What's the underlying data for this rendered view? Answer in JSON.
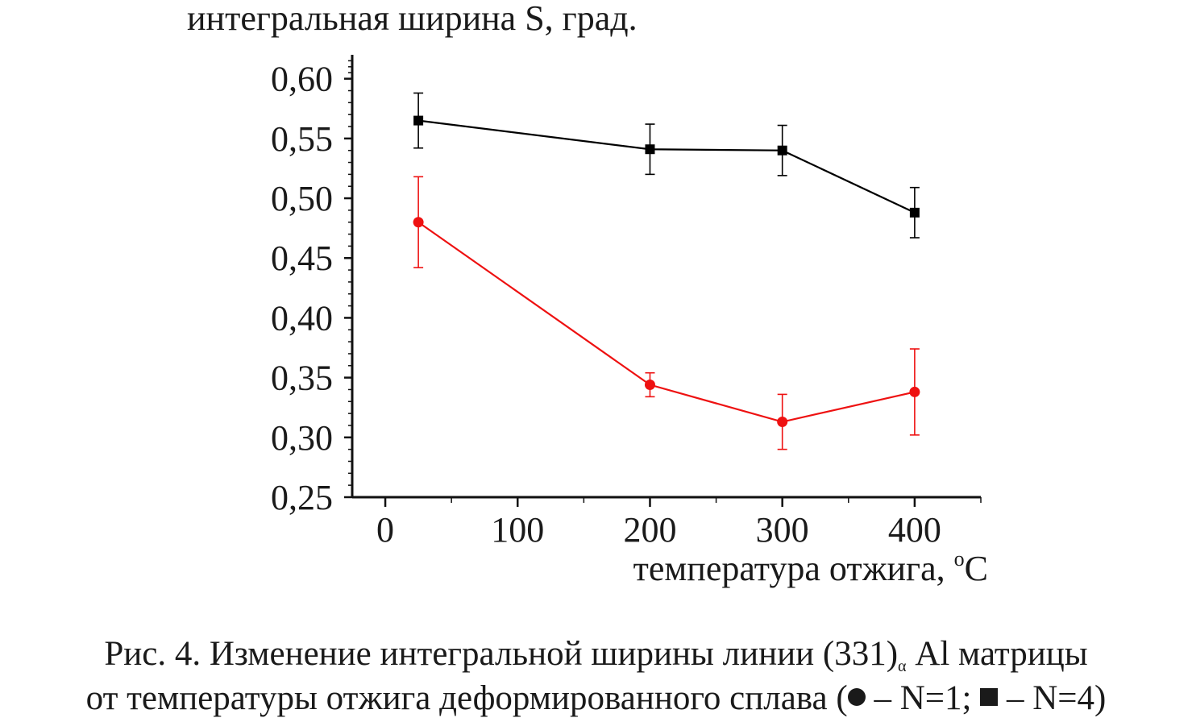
{
  "chart_data": {
    "type": "line",
    "ylabel": "интегральная ширина S, град.",
    "xlabel": "температура отжига, ",
    "xlabel_unit_sup": "o",
    "xlabel_unit": "C",
    "xlim": [
      -25,
      450
    ],
    "ylim": [
      0.25,
      0.62
    ],
    "x_ticks": [
      0,
      100,
      200,
      300,
      400
    ],
    "x_tick_labels": [
      "0",
      "100",
      "200",
      "300",
      "400"
    ],
    "y_ticks": [
      0.25,
      0.3,
      0.35,
      0.4,
      0.45,
      0.5,
      0.55,
      0.6
    ],
    "y_tick_labels": [
      "0,25",
      "0,30",
      "0,35",
      "0,40",
      "0,45",
      "0,50",
      "0,55",
      "0,60"
    ],
    "grid": false,
    "series": [
      {
        "marker": "square",
        "color": "#000000",
        "x": [
          25,
          200,
          300,
          400
        ],
        "y": [
          0.565,
          0.541,
          0.54,
          0.488
        ],
        "err": [
          0.023,
          0.021,
          0.021,
          0.021
        ]
      },
      {
        "marker": "circle",
        "color": "#ee1111",
        "x": [
          25,
          200,
          300,
          400
        ],
        "y": [
          0.48,
          0.344,
          0.313,
          0.338
        ],
        "err": [
          0.038,
          0.01,
          0.023,
          0.036
        ]
      }
    ]
  },
  "caption": {
    "line1_main": "Рис. 4. Изменение интегральной ширины линии (331)",
    "line1_sub": "α",
    "line1_end": " Al матрицы",
    "line2_start": "от температуры отжига деформированного сплава (",
    "line2_circle_label": " – N=1; ",
    "line2_square_label": " – N=4)"
  }
}
